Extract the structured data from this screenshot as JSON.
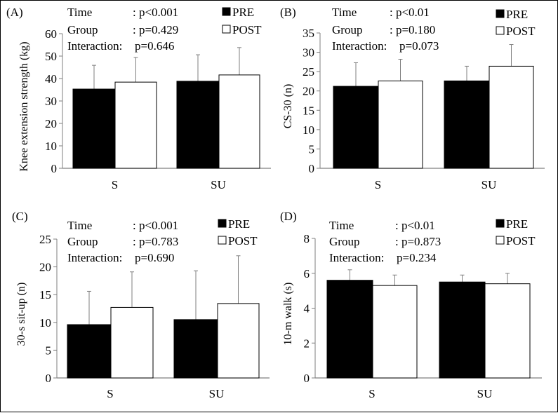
{
  "legend": {
    "pre_label": "PRE",
    "post_label": "POST",
    "pre_color": "#000000",
    "post_color": "#ffffff"
  },
  "chart_data": [
    {
      "type": "bar",
      "panel": "(A)",
      "title": "",
      "xlabel": "",
      "ylabel": "Knee extension strength (kg)",
      "categories": [
        "S",
        "SU"
      ],
      "ylim": [
        0,
        60
      ],
      "yticks": [
        0,
        10,
        20,
        30,
        40,
        50,
        60
      ],
      "series": [
        {
          "name": "PRE",
          "values": [
            35.3,
            38.8
          ],
          "error_upper": [
            45.9,
            50.6
          ]
        },
        {
          "name": "POST",
          "values": [
            38.4,
            41.6
          ],
          "error_upper": [
            49.4,
            53.8
          ]
        }
      ],
      "stats": [
        {
          "label": "Time",
          "value": ": p<0.001"
        },
        {
          "label": "Group",
          "value": ": p=0.429"
        },
        {
          "label": "Interaction:",
          "value": "p=0.646"
        }
      ],
      "legend_position": "top-right",
      "grid": false
    },
    {
      "type": "bar",
      "panel": "(B)",
      "title": "",
      "xlabel": "",
      "ylabel": "CS-30 (n)",
      "categories": [
        "S",
        "SU"
      ],
      "ylim": [
        0,
        35
      ],
      "yticks": [
        0,
        5,
        10,
        15,
        20,
        25,
        30,
        35
      ],
      "series": [
        {
          "name": "PRE",
          "values": [
            21.2,
            22.6
          ],
          "error_upper": [
            27.3,
            26.4
          ]
        },
        {
          "name": "POST",
          "values": [
            22.6,
            26.4
          ],
          "error_upper": [
            28.2,
            32.0
          ]
        }
      ],
      "stats": [
        {
          "label": "Time",
          "value": ": p<0.01"
        },
        {
          "label": "Group",
          "value": ": p=0.180"
        },
        {
          "label": "Interaction:",
          "value": "p=0.073"
        }
      ],
      "legend_position": "top-right",
      "grid": false
    },
    {
      "type": "bar",
      "panel": "(C)",
      "title": "",
      "xlabel": "",
      "ylabel": "30-s sit-up (n)",
      "categories": [
        "S",
        "SU"
      ],
      "ylim": [
        0,
        25
      ],
      "yticks": [
        0,
        5,
        10,
        15,
        20,
        25
      ],
      "series": [
        {
          "name": "PRE",
          "values": [
            9.6,
            10.5
          ],
          "error_upper": [
            15.6,
            19.3
          ]
        },
        {
          "name": "POST",
          "values": [
            12.7,
            13.4
          ],
          "error_upper": [
            19.1,
            22.0
          ]
        }
      ],
      "stats": [
        {
          "label": "Time",
          "value": ": p<0.001"
        },
        {
          "label": "Group",
          "value": ": p=0.783"
        },
        {
          "label": "Interaction:",
          "value": "p=0.690"
        }
      ],
      "legend_position": "top-right",
      "grid": false
    },
    {
      "type": "bar",
      "panel": "(D)",
      "title": "",
      "xlabel": "",
      "ylabel": "10-m walk (s)",
      "categories": [
        "S",
        "SU"
      ],
      "ylim": [
        0,
        8
      ],
      "yticks": [
        0,
        2,
        4,
        6,
        8
      ],
      "series": [
        {
          "name": "PRE",
          "values": [
            5.6,
            5.5
          ],
          "error_upper": [
            6.2,
            5.9
          ]
        },
        {
          "name": "POST",
          "values": [
            5.3,
            5.4
          ],
          "error_upper": [
            5.9,
            6.0
          ]
        }
      ],
      "stats": [
        {
          "label": "Time",
          "value": ": p<0.01"
        },
        {
          "label": "Group",
          "value": ": p=0.873"
        },
        {
          "label": "Interaction:",
          "value": "p=0.234"
        }
      ],
      "legend_position": "top-right",
      "grid": false
    }
  ]
}
